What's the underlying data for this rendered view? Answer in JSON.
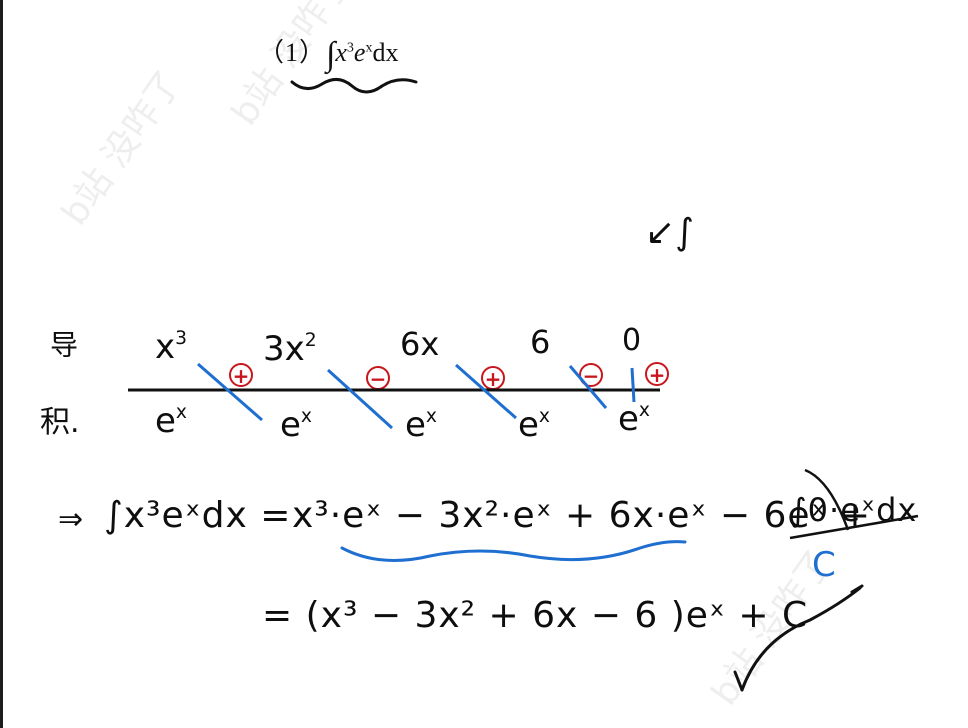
{
  "problem": {
    "number": "（1）",
    "integral_sign": "∫",
    "expr_x": "x",
    "expr_x_exp": "3",
    "expr_e": "e",
    "expr_e_exp": "x",
    "expr_dx": "dx"
  },
  "table": {
    "derivative_label": "导",
    "integral_label": "积.",
    "top_row": [
      {
        "base": "x",
        "exp": "3"
      },
      {
        "base": "3x",
        "exp": "2"
      },
      {
        "base": "6x",
        "exp": ""
      },
      {
        "base": "6",
        "exp": ""
      },
      {
        "base": "0",
        "exp": ""
      }
    ],
    "bottom_row": [
      {
        "base": "e",
        "exp": "x"
      },
      {
        "base": "e",
        "exp": "x"
      },
      {
        "base": "e",
        "exp": "x"
      },
      {
        "base": "e",
        "exp": "x"
      },
      {
        "base": "e",
        "exp": "x"
      }
    ],
    "signs": [
      "+",
      "−",
      "+",
      "−",
      "+"
    ]
  },
  "side_note": "↙∫",
  "solution": {
    "arrow": "⇒",
    "line1_lhs": "∫x³eˣdx =",
    "line1_rhs": "x³·eˣ − 3x²·eˣ + 6x·eˣ − 6eˣ +",
    "line1_tail": "∫0·eˣdx",
    "crossed_result": "C",
    "line2": "= (x³ − 3x² + 6x − 6 )eˣ + C"
  },
  "watermark": "b站 没咋了",
  "colors": {
    "ink": "#0e0e0e",
    "red": "#c8161d",
    "blue": "#1f6fd1"
  }
}
